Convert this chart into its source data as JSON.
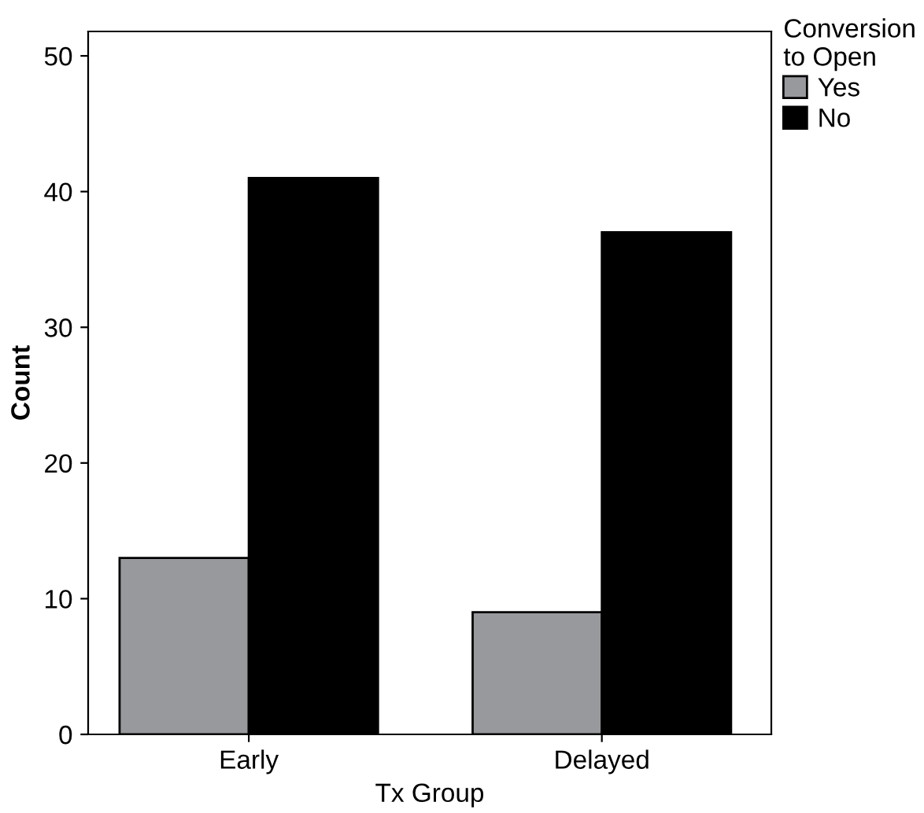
{
  "chart_data": {
    "type": "bar",
    "xlabel": "Tx Group",
    "ylabel": "Count",
    "legend_title": "Conversion\nto Open",
    "categories": [
      "Early",
      "Delayed"
    ],
    "series": [
      {
        "name": "Yes",
        "color": "#98999d",
        "values": [
          13,
          9
        ]
      },
      {
        "name": "No",
        "color": "#000000",
        "values": [
          41,
          37
        ]
      }
    ],
    "ylim": [
      0,
      51.8
    ],
    "yticks": [
      0,
      10,
      20,
      30,
      40,
      50
    ],
    "grid": false,
    "legend": "top right"
  }
}
